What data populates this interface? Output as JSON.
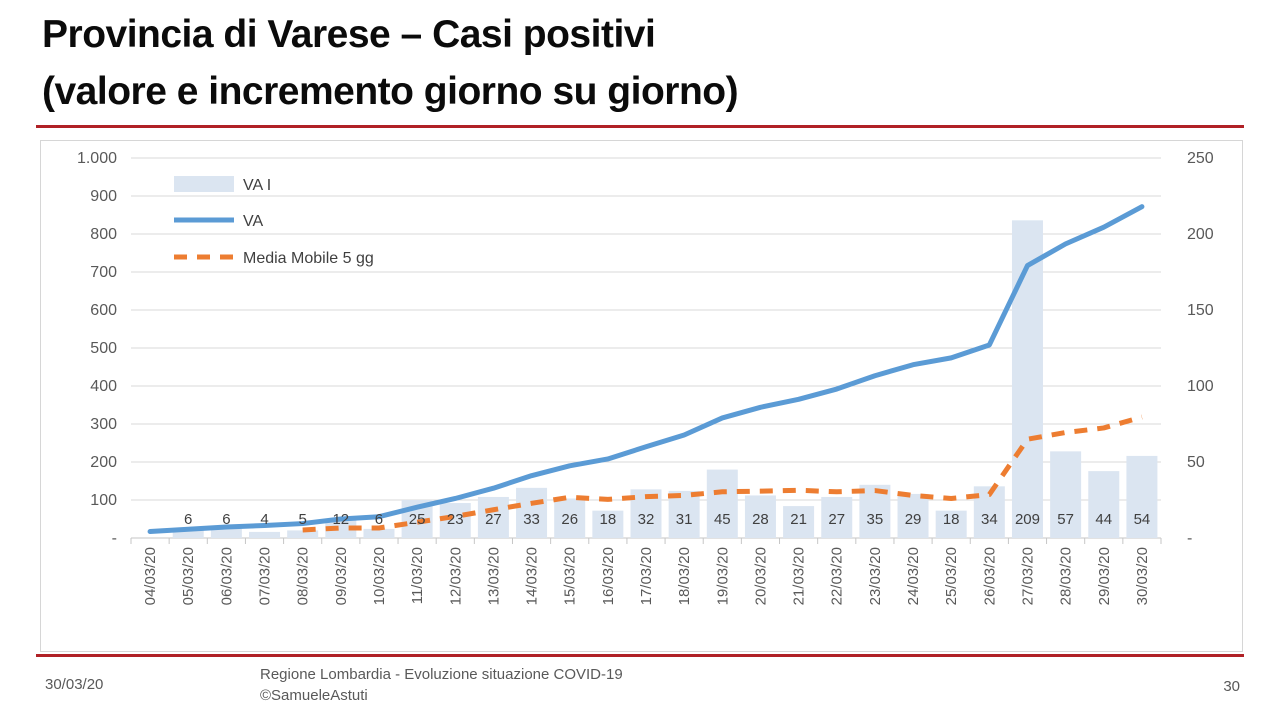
{
  "slide": {
    "title_line1": "Provincia di Varese – Casi positivi",
    "title_line2": "(valore e incremento giorno su giorno)",
    "footer_date": "30/03/20",
    "footer_center_line1": "Regione Lombardia - Evoluzione situazione COVID-19",
    "footer_center_line2": "©SamueleAstuti",
    "page_number": "30"
  },
  "chart_data": {
    "type": "combo-bar-line",
    "categories": [
      "04/03/20",
      "05/03/20",
      "06/03/20",
      "07/03/20",
      "08/03/20",
      "09/03/20",
      "10/03/20",
      "11/03/20",
      "12/03/20",
      "13/03/20",
      "14/03/20",
      "15/03/20",
      "16/03/20",
      "17/03/20",
      "18/03/20",
      "19/03/20",
      "20/03/20",
      "21/03/20",
      "22/03/20",
      "23/03/20",
      "24/03/20",
      "25/03/20",
      "26/03/20",
      "27/03/20",
      "28/03/20",
      "29/03/20",
      "30/03/20"
    ],
    "series": [
      {
        "name": "VA I",
        "type": "bar",
        "axis": "right",
        "color": "#dbe5f1",
        "values": [
          null,
          6,
          6,
          4,
          5,
          12,
          6,
          25,
          23,
          27,
          33,
          26,
          18,
          32,
          31,
          45,
          28,
          21,
          27,
          35,
          29,
          18,
          34,
          209,
          57,
          44,
          54
        ],
        "labels_shown": true
      },
      {
        "name": "VA",
        "type": "line",
        "axis": "left",
        "color": "#5b9bd5",
        "values": [
          17,
          23,
          29,
          33,
          38,
          50,
          56,
          81,
          104,
          131,
          164,
          190,
          208,
          240,
          271,
          316,
          344,
          365,
          392,
          427,
          456,
          474,
          508,
          717,
          774,
          818,
          872
        ]
      },
      {
        "name": "Media Mobile 5 gg",
        "type": "line-dashed",
        "axis": "right",
        "color": "#ed7d31",
        "values": [
          null,
          null,
          null,
          null,
          5.3,
          6.6,
          6.6,
          10.4,
          14.2,
          18.6,
          22.8,
          26.8,
          25.4,
          27.2,
          28,
          30.4,
          30.8,
          31.4,
          30.4,
          31.2,
          28,
          26,
          28.6,
          65,
          69.4,
          72.4,
          79.6
        ]
      }
    ],
    "left_axis": {
      "min": 0,
      "max": 1000,
      "tick_labels": [
        "1.000",
        "900",
        "800",
        "700",
        "600",
        "500",
        "400",
        "300",
        "200",
        "100",
        "-"
      ]
    },
    "right_axis": {
      "min": 0,
      "max": 250,
      "tick_labels": [
        "250",
        "200",
        "150",
        "100",
        "50",
        "-"
      ]
    },
    "legend_position": "inside-top-left",
    "grid": true,
    "colors": {
      "grid": "#d9d9d9",
      "axis": "#c6c6c6",
      "axis_text": "#595959",
      "data_label_text": "#404040",
      "legend_text": "#404040"
    }
  }
}
